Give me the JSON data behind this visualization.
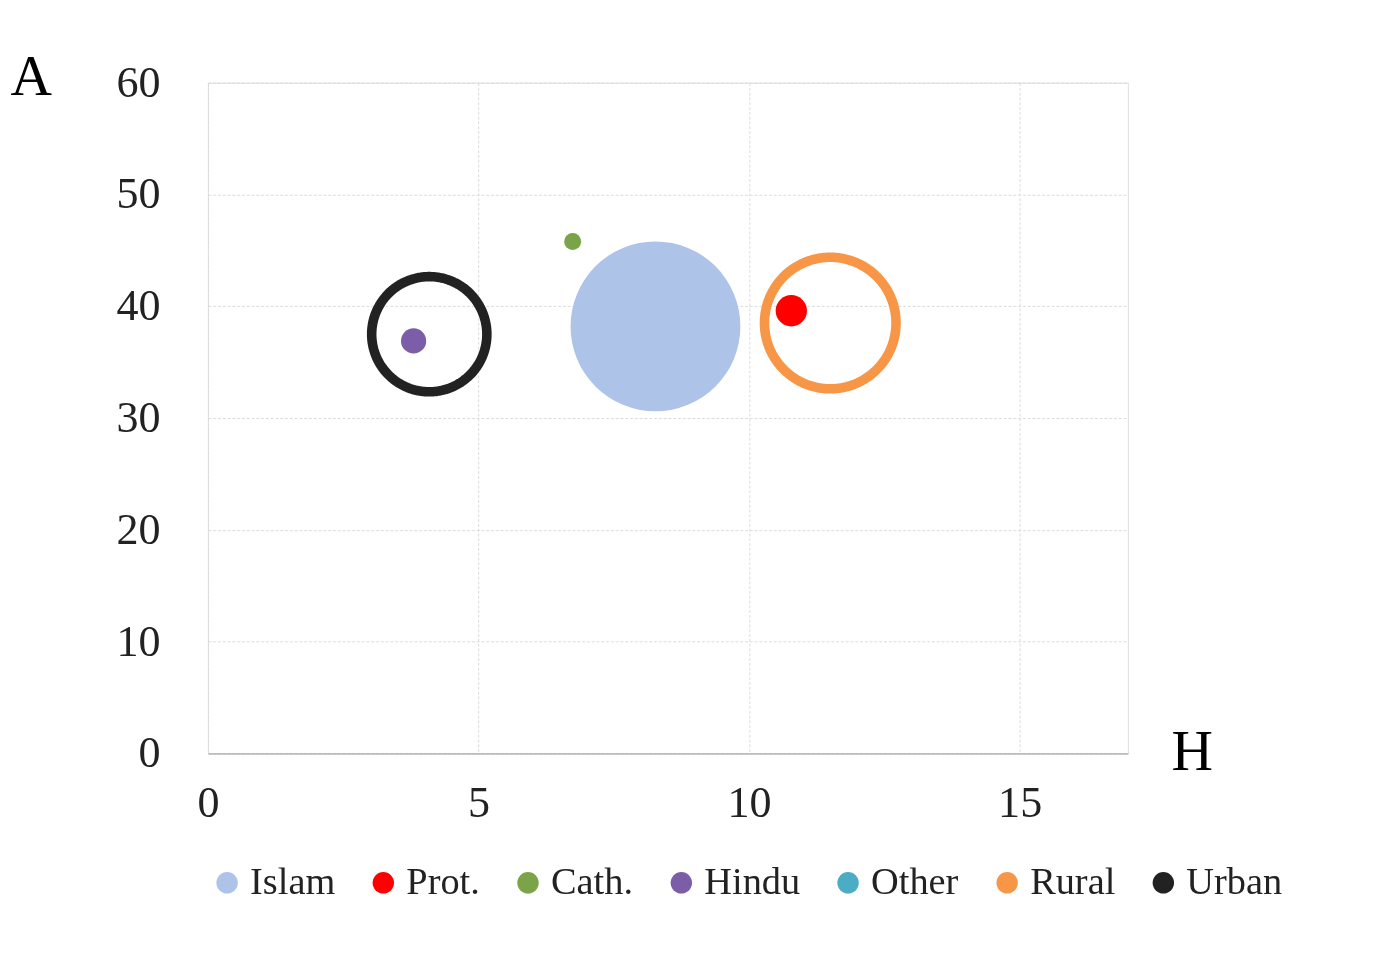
{
  "chart_data": {
    "type": "bubble",
    "xlabel": "H",
    "ylabel": "A",
    "xlim": [
      0,
      17
    ],
    "xticks": [
      0,
      5,
      10,
      15
    ],
    "ylim": [
      0,
      60
    ],
    "yticks": [
      0,
      10,
      20,
      30,
      40,
      50,
      60
    ],
    "grid": true,
    "legend": "bottom",
    "marker": "circle",
    "series": [
      {
        "name": "Islam",
        "color": "#aec3e8",
        "x": [
          8.27
        ],
        "values": [
          38.2
        ],
        "sizes": [
          1
        ]
      },
      {
        "name": "Prot.",
        "color": "#ff0000",
        "x": [
          10.78
        ],
        "values": [
          39.6
        ],
        "sizes": [
          0.034
        ]
      },
      {
        "name": "Cath.",
        "color": "#7ba347",
        "x": [
          6.74
        ],
        "values": [
          45.8
        ],
        "sizes": [
          0.01
        ]
      },
      {
        "name": "Hindu",
        "color": "#7b5ea7",
        "x": [
          3.8
        ],
        "values": [
          36.9
        ],
        "sizes": [
          0.022
        ]
      },
      {
        "name": "Other",
        "color": "#4bacc6"
      },
      {
        "name": "Rural",
        "color": "#f79646",
        "x": [
          11.5
        ],
        "values": [
          38.5
        ],
        "sizes": [
          0.6
        ],
        "line_style": "solid"
      },
      {
        "name": "Urban",
        "color": "#222222",
        "x": [
          4.09
        ],
        "values": [
          37.5
        ],
        "sizes": [
          0.46
        ],
        "line_style": "solid"
      }
    ]
  }
}
